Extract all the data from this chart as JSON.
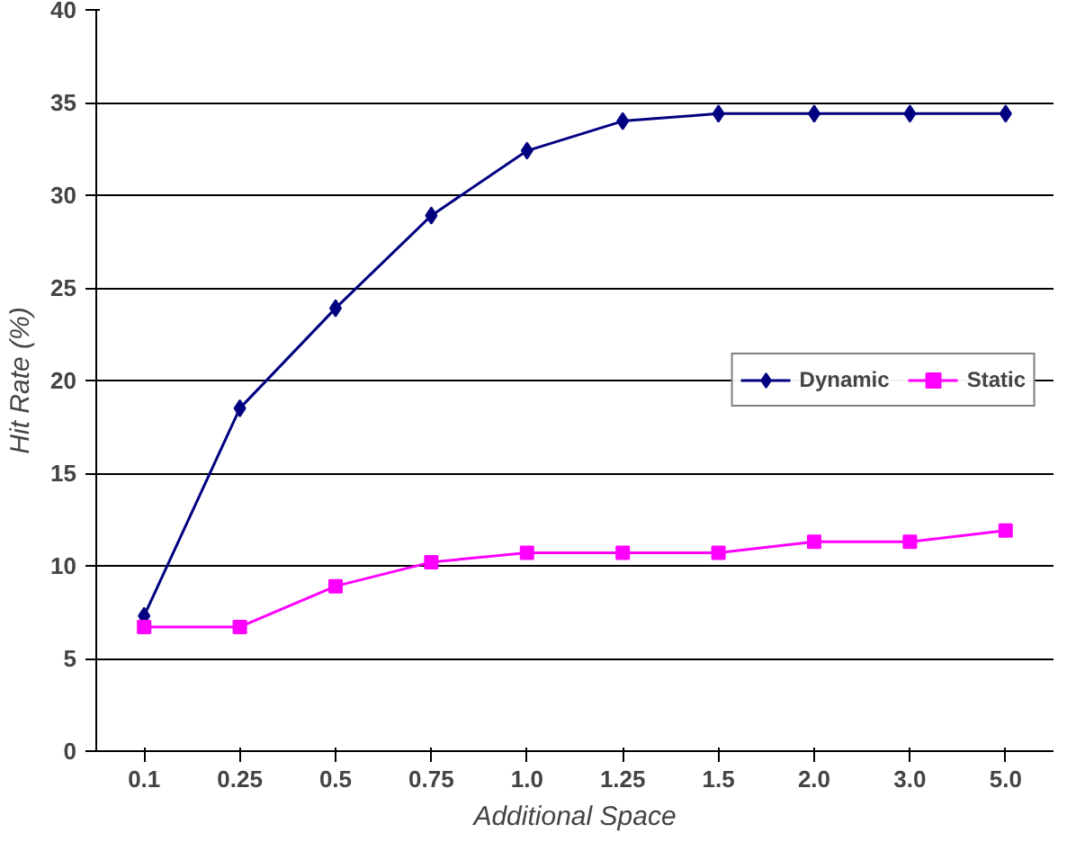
{
  "chart_data": {
    "type": "line",
    "xlabel": "Additional Space",
    "ylabel": "Hit Rate (%)",
    "categories": [
      "0.1",
      "0.25",
      "0.5",
      "0.75",
      "1.0",
      "1.25",
      "1.5",
      "2.0",
      "3.0",
      "5.0"
    ],
    "ylim": [
      0,
      40
    ],
    "yticks": [
      0,
      5,
      10,
      15,
      20,
      25,
      30,
      35,
      40
    ],
    "grid": "y",
    "legend": "right",
    "series": [
      {
        "name": "Dynamic",
        "color": "#000080",
        "marker": "diamond",
        "values": [
          7.3,
          18.5,
          23.9,
          28.9,
          32.4,
          34.0,
          34.4,
          34.4,
          34.4,
          34.4
        ]
      },
      {
        "name": "Static",
        "color": "#ff00ff",
        "marker": "square",
        "values": [
          6.7,
          6.7,
          8.9,
          10.2,
          10.7,
          10.7,
          10.7,
          11.3,
          11.3,
          11.9
        ]
      }
    ]
  }
}
